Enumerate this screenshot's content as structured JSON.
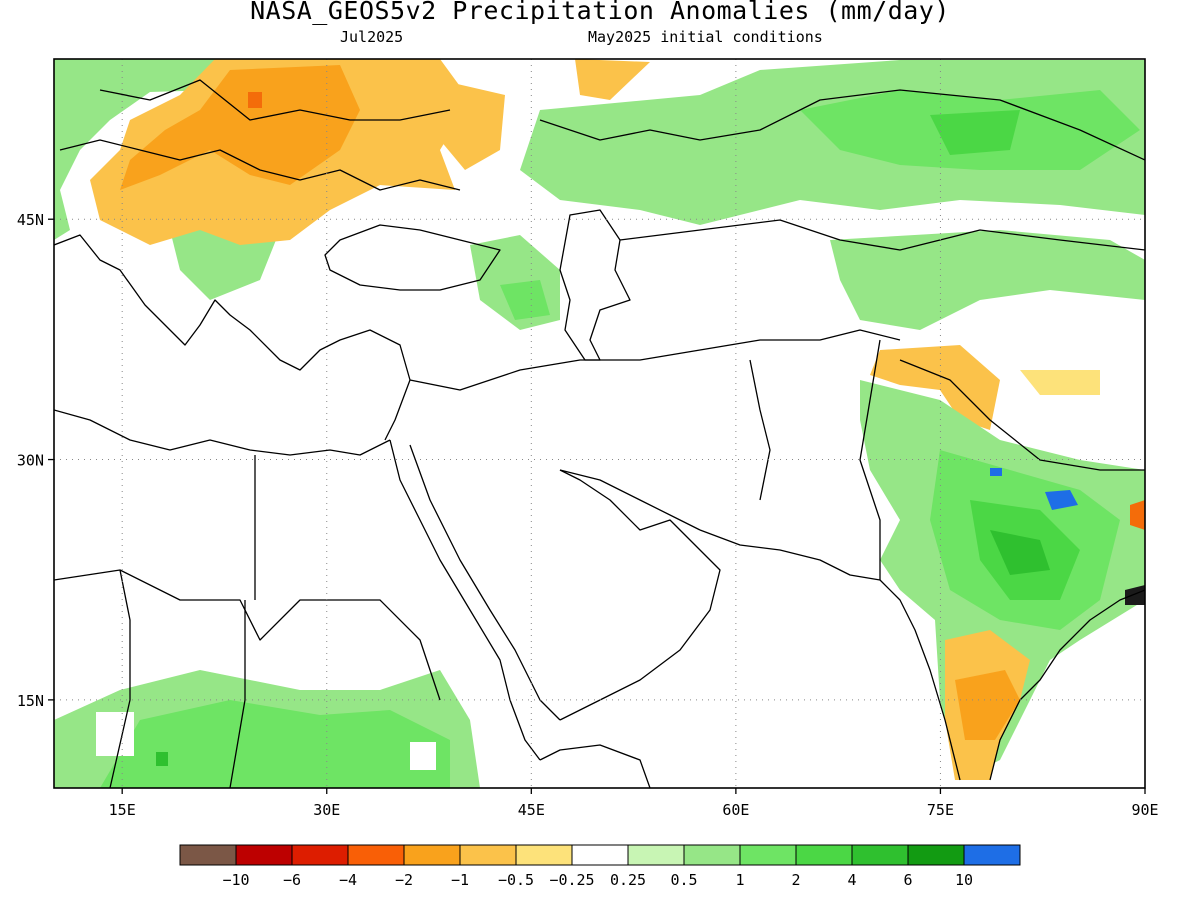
{
  "title": "NASA_GEOS5v2 Precipitation Anomalies (mm/day)",
  "subtitle_left": "Jul2025",
  "subtitle_right": "May2025 initial conditions",
  "map": {
    "lon_range": [
      10,
      90
    ],
    "lat_range": [
      9.5,
      55
    ],
    "lon_ticks": [
      {
        "v": 15,
        "label": "15E"
      },
      {
        "v": 30,
        "label": "30E"
      },
      {
        "v": 45,
        "label": "45E"
      },
      {
        "v": 60,
        "label": "60E"
      },
      {
        "v": 75,
        "label": "75E"
      },
      {
        "v": 90,
        "label": "90E"
      }
    ],
    "lat_ticks": [
      {
        "v": 45,
        "label": "45N"
      },
      {
        "v": 30,
        "label": "30N"
      },
      {
        "v": 15,
        "label": "15N"
      }
    ]
  },
  "colors": {
    "wet_light": "#c8f5b4",
    "wet_1": "#96e687",
    "wet_2": "#6ee464",
    "wet_3": "#4bd745",
    "wet_4": "#2fc02f",
    "wet_5": "#129b12",
    "wet_6": "#1e6ee6",
    "dry_1": "#fde27a",
    "dry_2": "#fbc24a",
    "dry_3": "#f9a21c",
    "dry_4": "#f46c0a",
    "dry_5": "#e03c0c",
    "dry_6": "#c00000"
  },
  "legend": {
    "colors": [
      "#7b5746",
      "#bd0000",
      "#dd1d00",
      "#f95f06",
      "#f9a21c",
      "#fbc24a",
      "#fde27a",
      "#ffffff",
      "#c8f5b4",
      "#96e687",
      "#6ee464",
      "#4bd745",
      "#2fc02f",
      "#129b12",
      "#1e6ee6"
    ],
    "labels": [
      "−10",
      "−6",
      "−4",
      "−2",
      "−1",
      "−0.5",
      "−0.25",
      "0.25",
      "0.5",
      "1",
      "2",
      "4",
      "6",
      "10"
    ]
  }
}
